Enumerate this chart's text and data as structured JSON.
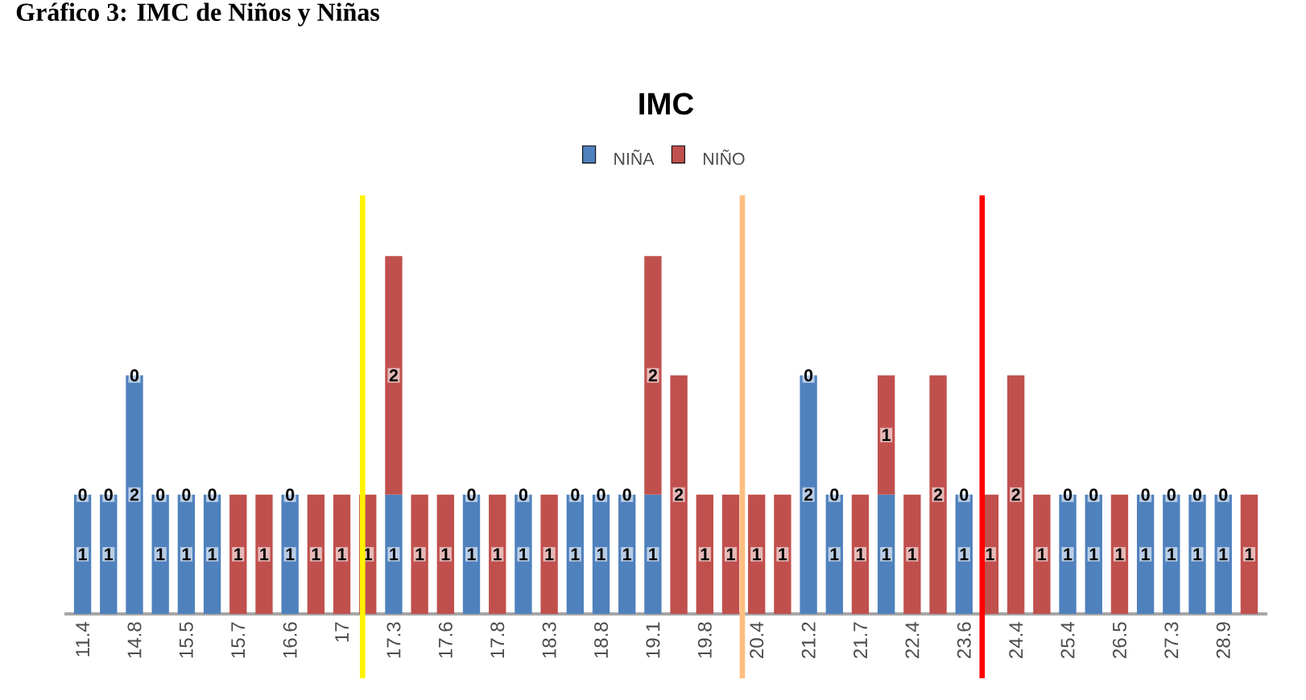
{
  "chart_data": {
    "type": "bar",
    "title": "IMC",
    "annotations": [
      "Gráfico 3: IMC de Niños y Niñas"
    ],
    "categories": [
      "11.4",
      null,
      "14.8",
      null,
      "15.5",
      null,
      "15.7",
      null,
      "16.6",
      null,
      "17",
      null,
      "17.3",
      null,
      "17.6",
      null,
      "17.8",
      null,
      "18.3",
      null,
      "18.8",
      null,
      "19.1",
      null,
      "19.8",
      null,
      "20.4",
      null,
      "21.2",
      null,
      "21.7",
      null,
      "22.4",
      null,
      "23.6",
      null,
      "24.4",
      null,
      "25.4",
      null,
      "26.5",
      null,
      "27.3",
      null,
      "28.9",
      null
    ],
    "stacked": true,
    "legend": "top",
    "series": [
      {
        "name": "NIÑA",
        "color": "#4f81bd",
        "values": [
          1,
          1,
          2,
          1,
          1,
          1,
          0,
          0,
          1,
          0,
          0,
          0,
          1,
          0,
          0,
          1,
          0,
          1,
          0,
          1,
          1,
          1,
          1,
          0,
          0,
          0,
          0,
          0,
          2,
          1,
          0,
          1,
          0,
          0,
          1,
          0,
          0,
          0,
          1,
          1,
          0,
          1,
          1,
          1,
          1,
          0
        ],
        "value_labels": [
          "1",
          "1",
          "2",
          "1",
          "1",
          "1",
          null,
          null,
          "1",
          null,
          null,
          null,
          "1",
          null,
          null,
          "1",
          null,
          "1",
          null,
          "1",
          "1",
          "1",
          "1",
          null,
          null,
          null,
          null,
          null,
          "2",
          "1",
          null,
          "1",
          null,
          null,
          "1",
          null,
          null,
          null,
          "1",
          "1",
          null,
          "1",
          "1",
          "1",
          "1",
          null
        ]
      },
      {
        "name": "NIÑO",
        "color": "#c0504d",
        "values": [
          0,
          0,
          0,
          0,
          0,
          0,
          1,
          1,
          0,
          1,
          1,
          1,
          2,
          1,
          1,
          0,
          1,
          0,
          1,
          0,
          0,
          0,
          2,
          2,
          1,
          1,
          1,
          1,
          0,
          0,
          1,
          1,
          1,
          2,
          0,
          1,
          2,
          1,
          0,
          0,
          1,
          0,
          0,
          0,
          0,
          1
        ],
        "value_labels": [
          "0",
          "0",
          "0",
          "0",
          "0",
          "0",
          "1",
          "1",
          "0",
          "1",
          "1",
          "1",
          "2",
          "1",
          "1",
          "0",
          "1",
          "0",
          "1",
          "0",
          "0",
          "0",
          "2",
          "2",
          "1",
          "1",
          "1",
          "1",
          "0",
          "0",
          "1",
          "1",
          "1",
          "2",
          "0",
          "1",
          "2",
          "1",
          "0",
          "0",
          "1",
          "0",
          "0",
          "0",
          "0",
          "1"
        ]
      }
    ]
  }
}
